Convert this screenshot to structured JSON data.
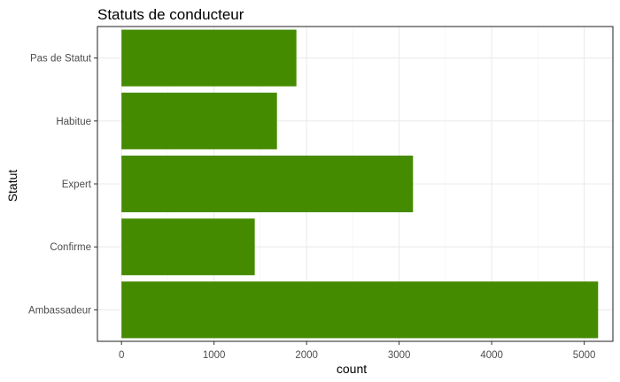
{
  "chart_data": {
    "type": "bar",
    "orientation": "horizontal",
    "title": "Statuts de conducteur",
    "xlabel": "count",
    "ylabel": "Statut",
    "categories": [
      "Pas de Statut",
      "Habitue",
      "Expert",
      "Confirme",
      "Ambassadeur"
    ],
    "values": [
      1890,
      1680,
      3150,
      1440,
      5150
    ],
    "xlim": [
      -260,
      5310
    ],
    "xticks": [
      0,
      1000,
      2000,
      3000,
      4000,
      5000
    ],
    "xtick_labels": [
      "0",
      "1000",
      "2000",
      "3000",
      "4000",
      "5000"
    ],
    "grid": true,
    "legend": "none",
    "bar_color": "#458B00"
  }
}
